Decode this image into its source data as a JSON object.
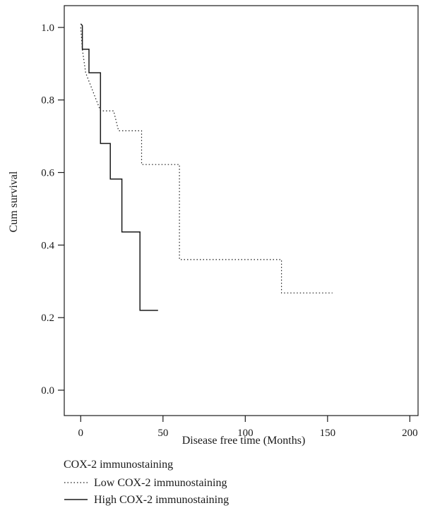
{
  "chart_data": {
    "type": "line",
    "xlabel": "Disease free time (Months)",
    "ylabel": "Cum survival",
    "xlim": [
      -10,
      205
    ],
    "ylim": [
      -0.07,
      1.06
    ],
    "x_ticks": [
      0,
      50,
      100,
      150,
      200
    ],
    "y_ticks": [
      0.0,
      0.2,
      0.4,
      0.6,
      0.8,
      1.0
    ],
    "y_tick_labels": [
      "0.0",
      "0.2",
      "0.4",
      "0.6",
      "0.8",
      "1.0"
    ],
    "grid": false,
    "legend": {
      "title": "COX-2 immunostaining",
      "placement": "bottom-left"
    },
    "series": [
      {
        "name": "Low COX-2 immunostaining",
        "style": "dotted",
        "color": "#1a1a1a",
        "step_points": [
          [
            0,
            1.0
          ],
          [
            1,
            0.94
          ],
          [
            3,
            0.875
          ],
          [
            12,
            0.77
          ],
          [
            20,
            0.77
          ],
          [
            23,
            0.715
          ],
          [
            37,
            0.715
          ],
          [
            37,
            0.622
          ],
          [
            60,
            0.622
          ],
          [
            60,
            0.36
          ],
          [
            122,
            0.36
          ],
          [
            122,
            0.268
          ],
          [
            153,
            0.268
          ]
        ]
      },
      {
        "name": "High COX-2 immunostaining",
        "style": "solid",
        "color": "#1a1a1a",
        "step_points": [
          [
            0,
            1.01
          ],
          [
            1,
            1.005
          ],
          [
            1,
            0.94
          ],
          [
            5,
            0.94
          ],
          [
            5,
            0.875
          ],
          [
            12,
            0.875
          ],
          [
            12,
            0.68
          ],
          [
            18,
            0.68
          ],
          [
            18,
            0.582
          ],
          [
            25,
            0.582
          ],
          [
            25,
            0.436
          ],
          [
            36,
            0.436
          ],
          [
            36,
            0.22
          ],
          [
            47,
            0.22
          ]
        ]
      }
    ]
  }
}
